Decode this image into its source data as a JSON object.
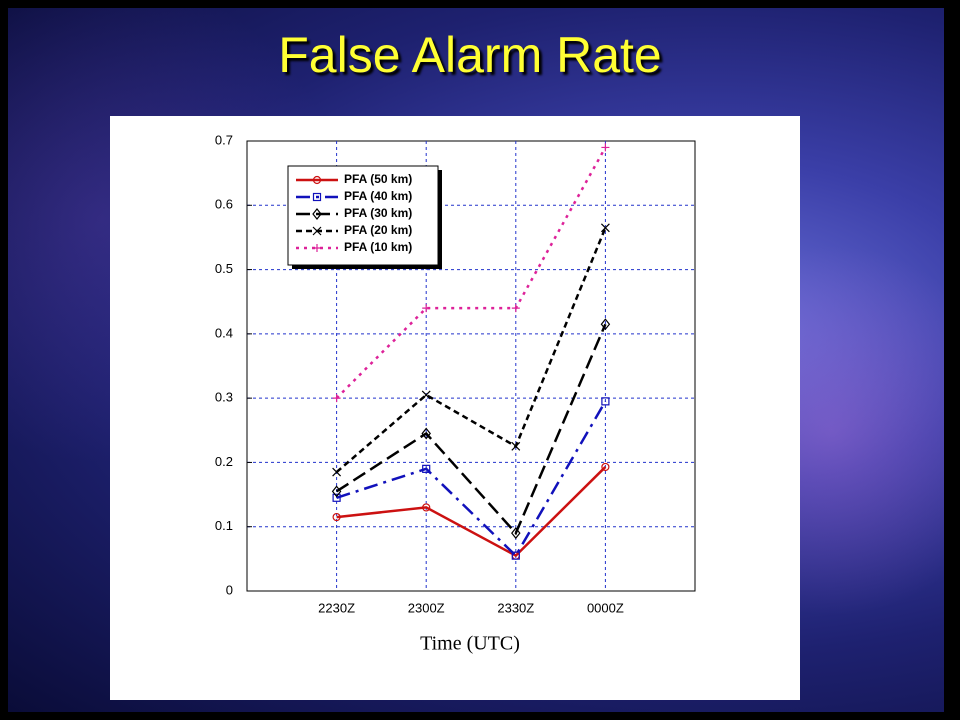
{
  "title": "False Alarm Rate",
  "chart_data": {
    "type": "line",
    "x_label": "Time (UTC)",
    "categories": [
      "2230Z",
      "2300Z",
      "2330Z",
      "0000Z"
    ],
    "series": [
      {
        "name": "PFA (50 km)",
        "color": "#cc1111",
        "values": [
          0.115,
          0.13,
          0.055,
          0.193
        ]
      },
      {
        "name": "PFA (40 km)",
        "color": "#1111bb",
        "values": [
          0.145,
          0.19,
          0.055,
          0.295
        ]
      },
      {
        "name": "PFA (30 km)",
        "color": "#000000",
        "values": [
          0.155,
          0.245,
          0.09,
          0.415
        ]
      },
      {
        "name": "PFA (20 km)",
        "color": "#000000",
        "values": [
          0.185,
          0.305,
          0.225,
          0.565
        ]
      },
      {
        "name": "PFA (10 km)",
        "color": "#dd2299",
        "values": [
          0.3,
          0.44,
          0.44,
          0.69
        ]
      }
    ],
    "ylim": [
      0,
      0.7
    ],
    "yticks": [
      0,
      0.1,
      0.2,
      0.3,
      0.4,
      0.5,
      0.6,
      0.7
    ],
    "grid": true,
    "legend": "upper left"
  }
}
